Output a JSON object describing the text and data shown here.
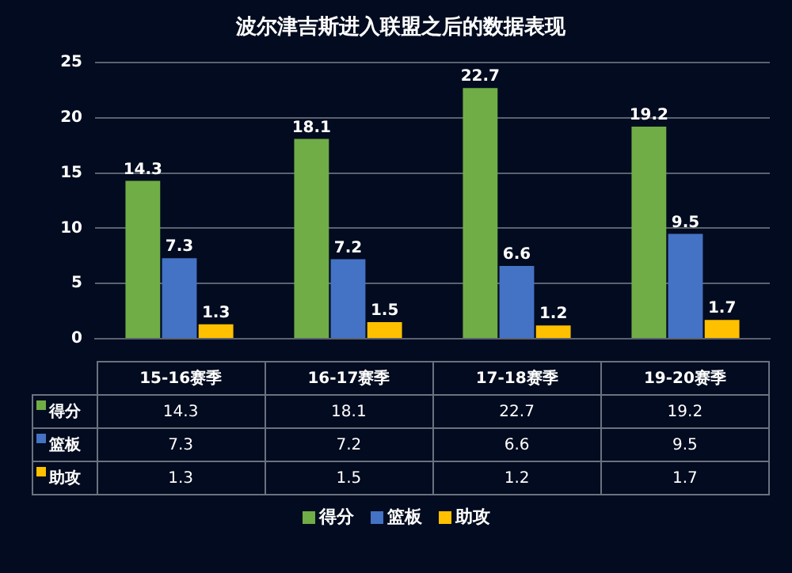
{
  "chart_data": {
    "type": "bar",
    "title": "波尔津吉斯进入联盟之后的数据表现",
    "categories": [
      "15-16赛季",
      "16-17赛季",
      "17-18赛季",
      "19-20赛季"
    ],
    "series": [
      {
        "name": "得分",
        "color": "#70ad47",
        "values": [
          14.3,
          18.1,
          22.7,
          19.2
        ]
      },
      {
        "name": "篮板",
        "color": "#4472c4",
        "values": [
          7.3,
          7.2,
          6.6,
          9.5
        ]
      },
      {
        "name": "助攻",
        "color": "#ffc000",
        "values": [
          1.3,
          1.5,
          1.2,
          1.7
        ]
      }
    ],
    "annotations": [
      "14.3",
      "18.1",
      "22.7",
      "19.2",
      "7.3",
      "7.2",
      "6.6",
      "9.5",
      "1.3",
      "1.5",
      "1.2",
      "1.7"
    ],
    "ylim": [
      0,
      25
    ],
    "yticks": [
      0,
      5,
      10,
      15,
      20,
      25
    ],
    "grid": "y",
    "legend": "bottom",
    "data_labels": true
  }
}
